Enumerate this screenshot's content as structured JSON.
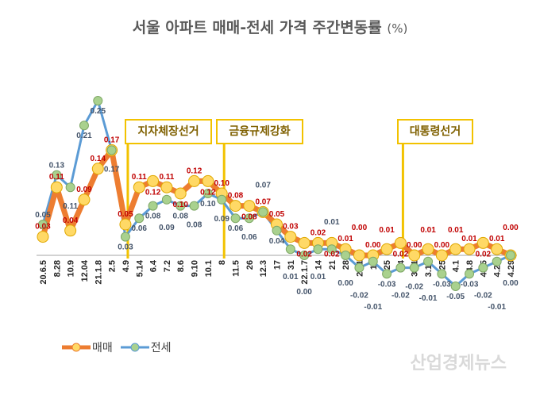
{
  "chart_data": {
    "type": "line",
    "title": "서울 아파트 매매-전세 가격 주간변동률",
    "title_unit": "(%)",
    "categories": [
      "20.6.5",
      "8.28",
      "10.9",
      "12.04",
      "21.1.8",
      "2.5",
      "4.9",
      "5.14",
      "6.4",
      "7.2",
      "8.6",
      "9.10",
      "10.1",
      "8",
      "11.5",
      "26",
      "12.3",
      "17",
      "31",
      "22.1.7",
      "14",
      "21",
      "28",
      "2.11",
      "18",
      "25",
      "3.4",
      "3.11",
      "3.18",
      "3.25",
      "4.1",
      "4.8",
      "4.15",
      "4.22",
      "4.29"
    ],
    "series": [
      {
        "name": "매매",
        "color": "#ED7D31",
        "marker": "#FFD966",
        "label_color": "#C00000",
        "values": [
          0.03,
          0.11,
          0.04,
          0.09,
          0.14,
          0.17,
          0.05,
          0.11,
          0.12,
          0.11,
          0.1,
          0.12,
          0.12,
          0.1,
          0.08,
          0.08,
          0.07,
          0.05,
          0.03,
          0.02,
          0.02,
          0.02,
          0.01,
          0.0,
          0.0,
          0.01,
          0.02,
          0.0,
          0.01,
          0.0,
          0.01,
          0.01,
          0.02,
          0.01,
          0.0
        ]
      },
      {
        "name": "전세",
        "color": "#5B9BD5",
        "marker": "#A9D18E",
        "label_color": "#44546A",
        "values": [
          0.05,
          0.13,
          0.11,
          0.21,
          0.25,
          0.17,
          0.03,
          0.06,
          0.08,
          0.09,
          0.08,
          0.08,
          0.1,
          0.09,
          0.06,
          0.06,
          0.07,
          0.04,
          0.01,
          0.0,
          0.01,
          0.01,
          0.0,
          -0.02,
          -0.01,
          -0.03,
          -0.02,
          -0.02,
          -0.01,
          -0.03,
          -0.05,
          -0.03,
          -0.02,
          -0.01,
          0.0
        ]
      }
    ],
    "annotations": [
      {
        "label": "지자체장선거",
        "at": "4.9"
      },
      {
        "label": "금융규제강화",
        "at": "8"
      },
      {
        "label": "대통령선거",
        "at": "3.4"
      }
    ],
    "legend": "bottom-left",
    "grid": false
  },
  "watermark": "산업경제뉴스"
}
